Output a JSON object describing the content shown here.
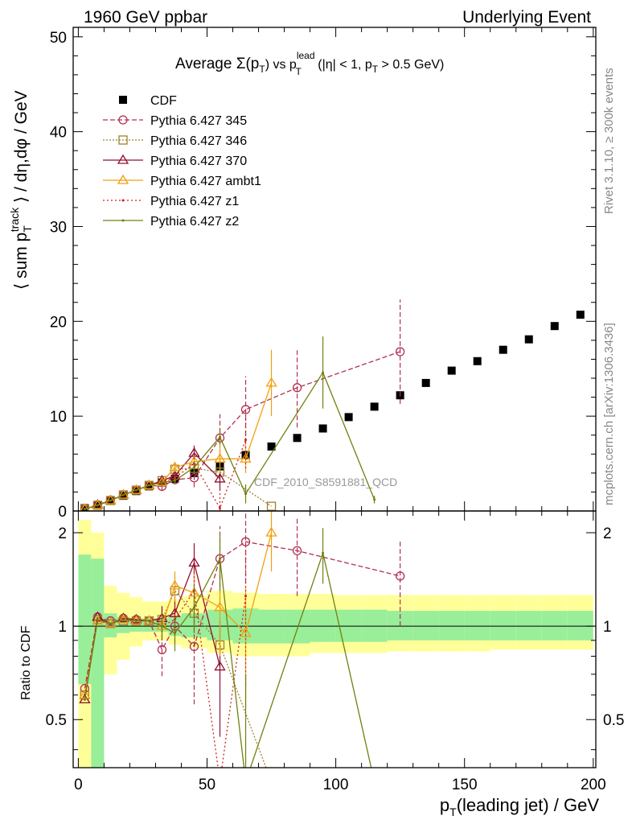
{
  "header": {
    "left": "1960 GeV ppbar",
    "right": "Underlying Event"
  },
  "side_labels": {
    "rivet": "Rivet 3.1.10, ≥ 300k events",
    "mcplots": "mcplots.cern.ch [arXiv:1306.3436]"
  },
  "chart_data": {
    "type": "scatter",
    "title": "Average Σ(p_T) vs p_T^lead (|η| < 1, p_T > 0.5 GeV)",
    "title_parts": {
      "prefix": "Average ",
      "sigma": "Σ(p",
      "sub1": "T",
      "mid": ") vs p",
      "sup": "lead",
      "sub2": "T",
      "rest": " (|η| < 1, p",
      "sub3": "T",
      "end": " > 0.5 GeV)"
    },
    "watermark": "CDF_2010_S8591881_QCD",
    "xlabel": "p_T(leading jet) / GeV",
    "xlabel_parts": {
      "p": "p",
      "sub": "T",
      "rest": "(leading jet) / GeV"
    },
    "ylabel": "⟨ sum p_T^track ⟩ / dη,dφ / GeV",
    "ylabel_parts": {
      "pre": "⟨ sum p",
      "sub": "T",
      "sup": "track",
      "rest": " ⟩ / dη,dφ / GeV"
    },
    "ratio_ylabel": "Ratio to CDF",
    "xlim": [
      -2,
      201
    ],
    "ylim": [
      0,
      51
    ],
    "ratio_ylim": [
      0.35,
      2.35
    ],
    "x_ticks": [
      0,
      50,
      100,
      150,
      200
    ],
    "y_ticks": [
      0,
      10,
      20,
      30,
      40,
      50
    ],
    "ratio_ticks": [
      0.5,
      1,
      2
    ],
    "ratio_tick_labels": [
      "0.5",
      "1",
      "2"
    ],
    "legend_position": "top-left",
    "bands": {
      "x_edges": [
        0,
        5,
        10,
        15,
        20,
        25,
        30,
        35,
        40,
        50,
        60,
        70,
        80,
        90,
        100,
        110,
        120,
        130,
        140,
        150,
        160,
        170,
        180,
        190,
        200
      ],
      "stat_lo": [
        0.65,
        0.3,
        0.92,
        0.95,
        0.96,
        0.96,
        0.96,
        0.93,
        0.92,
        0.9,
        0.88,
        0.88,
        0.88,
        0.89,
        0.89,
        0.89,
        0.9,
        0.9,
        0.9,
        0.9,
        0.9,
        0.9,
        0.9,
        0.9
      ],
      "stat_hi": [
        1.7,
        1.65,
        1.1,
        1.07,
        1.06,
        1.06,
        1.06,
        1.08,
        1.1,
        1.13,
        1.14,
        1.13,
        1.13,
        1.13,
        1.13,
        1.13,
        1.12,
        1.12,
        1.12,
        1.12,
        1.12,
        1.12,
        1.12,
        1.12
      ],
      "syst_lo": [
        0.3,
        0.3,
        0.7,
        0.78,
        0.86,
        0.9,
        0.9,
        0.87,
        0.85,
        0.82,
        0.8,
        0.8,
        0.8,
        0.82,
        0.82,
        0.82,
        0.83,
        0.83,
        0.83,
        0.83,
        0.84,
        0.84,
        0.84,
        0.84
      ],
      "syst_hi": [
        2.2,
        2.0,
        1.35,
        1.28,
        1.24,
        1.2,
        1.2,
        1.22,
        1.25,
        1.3,
        1.28,
        1.27,
        1.27,
        1.27,
        1.26,
        1.26,
        1.26,
        1.26,
        1.26,
        1.26,
        1.26,
        1.26,
        1.26,
        1.26
      ],
      "stat_color": "#99ee99",
      "syst_color": "#ffff99"
    },
    "series": [
      {
        "name": "CDF",
        "color": "#000000",
        "marker": "filled-square",
        "dash": "none",
        "x": [
          2.5,
          7.5,
          12.5,
          17.5,
          22.5,
          27.5,
          32.5,
          37.5,
          45,
          55,
          65,
          75,
          85,
          95,
          105,
          115,
          125,
          135,
          145,
          155,
          165,
          175,
          185,
          195
        ],
        "y": [
          0.3,
          0.6,
          1.1,
          1.6,
          2.1,
          2.6,
          3.0,
          3.4,
          4.0,
          4.7,
          5.9,
          6.8,
          7.7,
          8.7,
          9.9,
          11.0,
          12.2,
          13.5,
          14.8,
          15.8,
          17.0,
          18.1,
          19.5,
          20.7
        ],
        "ratio": []
      },
      {
        "name": "Pythia 6.427 345",
        "color": "#b03050",
        "marker": "open-circle",
        "dash": "6,3",
        "x": [
          2.5,
          7.5,
          12.5,
          17.5,
          22.5,
          27.5,
          32.5,
          37.5,
          45,
          55,
          65,
          85,
          125
        ],
        "y": [
          0.2,
          0.65,
          1.15,
          1.7,
          2.2,
          2.7,
          2.6,
          3.3,
          3.5,
          7.7,
          10.7,
          13.0,
          16.8
        ],
        "yerr": [
          0,
          0,
          0,
          0,
          0,
          0,
          0.5,
          0.4,
          1.0,
          2.5,
          3.5,
          4.2,
          5.5
        ],
        "ratio": [
          0.63,
          1.07,
          1.04,
          1.06,
          1.05,
          1.04,
          0.84,
          1.0,
          0.86,
          1.65,
          1.87,
          1.75,
          1.45
        ],
        "ratio_err": [
          0,
          0,
          0,
          0,
          0,
          0,
          0.15,
          0.12,
          0.3,
          0.45,
          0.5,
          0.5,
          0.45
        ]
      },
      {
        "name": "Pythia 6.427 346",
        "color": "#a08030",
        "marker": "open-square",
        "dash": "2,2",
        "x": [
          2.5,
          7.5,
          12.5,
          17.5,
          22.5,
          27.5,
          32.5,
          37.5,
          45,
          55,
          75
        ],
        "y": [
          0.2,
          0.6,
          1.1,
          1.7,
          2.2,
          2.7,
          3.2,
          4.4,
          4.5,
          4.1,
          0.5
        ],
        "yerr": [
          0,
          0,
          0,
          0,
          0,
          0,
          0.3,
          0.5,
          0.6,
          0.8,
          0
        ],
        "ratio": [
          0.6,
          1.05,
          1.02,
          1.04,
          1.04,
          1.04,
          1.05,
          1.3,
          1.1,
          0.87,
          0.1
        ],
        "ratio_err": [
          0,
          0,
          0,
          0,
          0,
          0,
          0.1,
          0.15,
          0.15,
          0.2,
          0
        ]
      },
      {
        "name": "Pythia 6.427 370",
        "color": "#901030",
        "marker": "open-triangle",
        "dash": "none",
        "x": [
          2.5,
          7.5,
          12.5,
          17.5,
          22.5,
          27.5,
          32.5,
          37.5,
          45,
          55
        ],
        "y": [
          0.18,
          0.65,
          1.1,
          1.7,
          2.2,
          2.7,
          3.2,
          3.7,
          6.1,
          3.4
        ],
        "yerr": [
          0,
          0,
          0,
          0,
          0,
          0,
          0.3,
          0.4,
          0.8,
          1.2
        ],
        "ratio": [
          0.58,
          1.07,
          1.02,
          1.06,
          1.05,
          1.04,
          1.06,
          1.1,
          1.6,
          0.74
        ],
        "ratio_err": [
          0,
          0,
          0,
          0,
          0,
          0,
          0.1,
          0.15,
          0.25,
          0.3
        ]
      },
      {
        "name": "Pythia 6.427 ambt1",
        "color": "#f0a010",
        "marker": "open-triangle",
        "dash": "none",
        "x": [
          2.5,
          7.5,
          12.5,
          17.5,
          22.5,
          27.5,
          32.5,
          37.5,
          45,
          55,
          65,
          75
        ],
        "y": [
          0.2,
          0.6,
          1.1,
          1.7,
          2.2,
          2.7,
          3.0,
          4.6,
          5.2,
          5.5,
          5.5,
          13.5
        ],
        "yerr": [
          0,
          0,
          0,
          0,
          0,
          0,
          0.3,
          0.5,
          0.6,
          1.5,
          1.5,
          3.5
        ],
        "ratio": [
          0.6,
          1.04,
          1.02,
          1.05,
          1.04,
          1.04,
          1.0,
          1.35,
          1.28,
          1.15,
          0.95,
          2.0
        ],
        "ratio_err": [
          0,
          0,
          0,
          0,
          0,
          0,
          0.1,
          0.15,
          0.2,
          0.35,
          0.4,
          0.5
        ]
      },
      {
        "name": "Pythia 6.427 z1",
        "color": "#d02020",
        "marker": "dot",
        "dash": "2,3",
        "x": [
          2.5,
          7.5,
          12.5,
          17.5,
          22.5,
          27.5,
          32.5,
          37.5,
          45,
          55,
          65
        ],
        "y": [
          0.2,
          0.6,
          1.1,
          1.7,
          2.2,
          2.7,
          3.0,
          3.5,
          5.0,
          0.3,
          7.5
        ],
        "yerr": [
          0,
          0,
          0,
          0,
          0,
          0,
          0.3,
          0.4,
          0.8,
          2.0,
          3.0
        ],
        "ratio": [
          0.6,
          1.04,
          1.02,
          1.05,
          1.04,
          1.04,
          1.0,
          1.05,
          1.3,
          0.05,
          1.25
        ],
        "ratio_err": [
          0,
          0,
          0,
          0,
          0,
          0,
          0.1,
          0.12,
          0.3,
          0.3,
          0.6
        ]
      },
      {
        "name": "Pythia 6.427 z2",
        "color": "#708010",
        "marker": "dot",
        "dash": "none",
        "x": [
          2.5,
          7.5,
          12.5,
          17.5,
          22.5,
          27.5,
          32.5,
          37.5,
          45,
          55,
          65,
          95,
          115
        ],
        "y": [
          0.2,
          0.6,
          1.1,
          1.7,
          2.2,
          2.7,
          3.0,
          3.2,
          4.6,
          7.8,
          1.8,
          14.6,
          1.2
        ],
        "yerr": [
          0,
          0,
          0,
          0,
          0,
          0,
          0.3,
          0.4,
          0.6,
          0.8,
          1.0,
          3.8,
          0.4
        ],
        "ratio": [
          0.58,
          1.05,
          1.02,
          1.05,
          1.04,
          1.04,
          1.0,
          0.95,
          1.15,
          1.65,
          0.3,
          1.72,
          0.1
        ],
        "ratio_err": [
          0,
          0,
          0,
          0,
          0,
          0,
          0.1,
          0.12,
          0.2,
          0.35,
          0.4,
          0.35,
          0
        ]
      }
    ]
  }
}
